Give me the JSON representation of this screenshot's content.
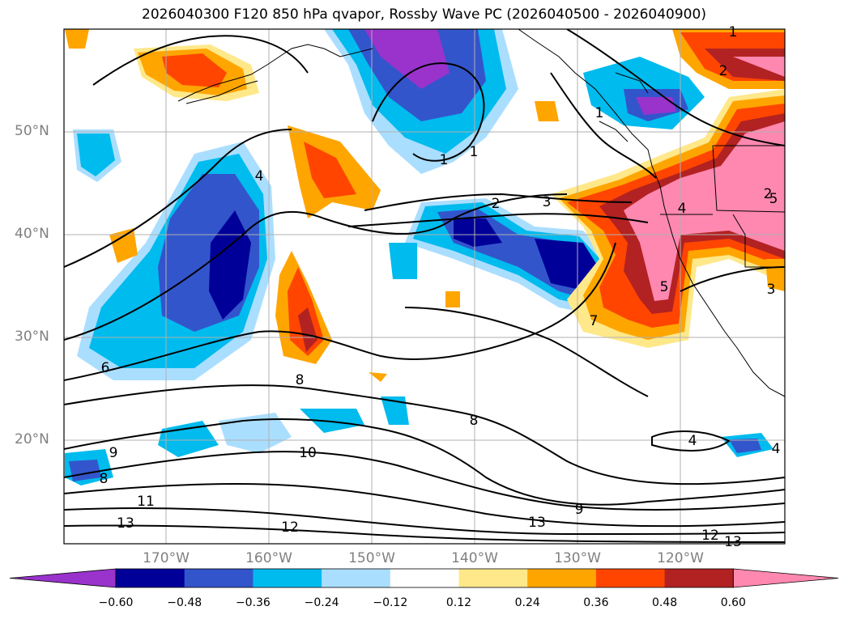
{
  "title": "2026040300 F120 850 hPa qvapor, Rossby Wave PC (2026040500 - 2026040900)",
  "lat_labels": [
    "50°N",
    "40°N",
    "30°N",
    "20°N"
  ],
  "lon_labels": [
    "170°W",
    "160°W",
    "150°W",
    "140°W",
    "130°W",
    "120°W"
  ],
  "colorbar": {
    "colors": [
      "#9933cc",
      "#000099",
      "#3355cc",
      "#00bbee",
      "#aadeff",
      "#ffffff",
      "#ffe88a",
      "#ffa500",
      "#ff4500",
      "#b22222",
      "#ff88b0"
    ],
    "tick_labels": [
      "−0.60",
      "−0.48",
      "−0.36",
      "−0.24",
      "−0.12",
      "0.12",
      "0.24",
      "0.36",
      "0.48",
      "0.60"
    ]
  },
  "contour_labels": [
    "1",
    "1",
    "1",
    "2",
    "2",
    "3",
    "4",
    "4",
    "4",
    "5",
    "5",
    "6",
    "7",
    "8",
    "8",
    "8",
    "9",
    "9",
    "10",
    "11",
    "12",
    "12",
    "13",
    "13",
    "13",
    "4",
    "3",
    "2",
    "1"
  ]
}
